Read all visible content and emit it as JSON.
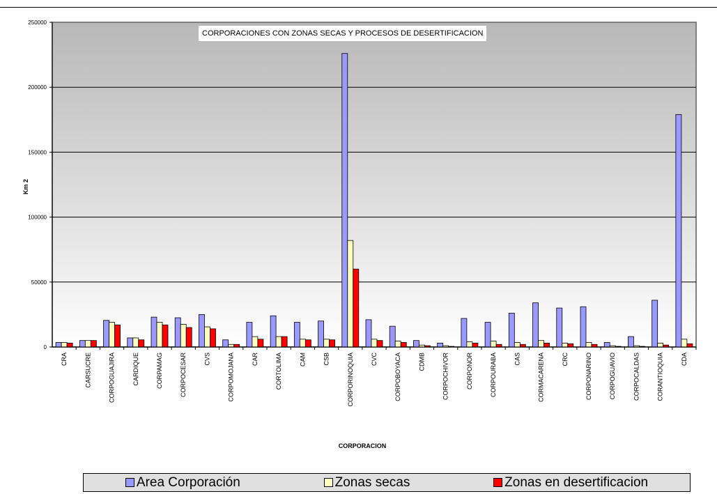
{
  "chart_data": {
    "type": "bar",
    "title": "CORPORACIONES CON ZONAS SECAS Y PROCESOS DE DESERTIFICACION",
    "xlabel": "CORPORACION",
    "ylabel": "Km 2",
    "ylim": [
      0,
      250000
    ],
    "yticks": [
      "0",
      "50000",
      "100000",
      "150000",
      "200000",
      "250000"
    ],
    "grid": true,
    "legend_position": "bottom",
    "categories": [
      "CRA",
      "CARSUCRE",
      "CORPOGUAJIRA",
      "CARDIQUE",
      "CORPAMAG",
      "CORPOCESAR",
      "CVS",
      "CORPOMOJANA",
      "CAR",
      "CORTOLIMA",
      "CAM",
      "CSB",
      "CORPORINOQUIA",
      "CVC",
      "CORPOBOYACA",
      "CDMB",
      "CORPOCHIVOR",
      "CORPONOR",
      "CORPOURABA",
      "CAS",
      "CORMACARENA",
      "CRC",
      "CORPONARINO",
      "CORPOGUAVIO",
      "CORPOCALDAS",
      "CORANTIOQUIA",
      "CDA"
    ],
    "series": [
      {
        "name": "Area Corporación",
        "color": "#9999ff",
        "values": [
          3500,
          5000,
          20500,
          7000,
          23000,
          22500,
          25000,
          5500,
          19000,
          24000,
          19000,
          20000,
          226000,
          21000,
          16000,
          5000,
          3000,
          22000,
          19000,
          26000,
          34000,
          30000,
          31000,
          3500,
          8000,
          36000,
          179000
        ]
      },
      {
        "name": "Zonas secas",
        "color": "#ffffc0",
        "values": [
          3500,
          5000,
          19000,
          7000,
          19000,
          17500,
          15500,
          2000,
          8000,
          8000,
          6000,
          6000,
          82000,
          6000,
          4500,
          1500,
          1000,
          4000,
          4500,
          3500,
          5000,
          3000,
          3500,
          1000,
          1000,
          3000,
          6000
        ]
      },
      {
        "name": "Zonas en desertificacion",
        "color": "#ff0000",
        "values": [
          3000,
          5000,
          17000,
          5500,
          17000,
          15000,
          14000,
          2000,
          6000,
          8000,
          5500,
          5500,
          60000,
          5000,
          3500,
          1000,
          500,
          3000,
          2000,
          2000,
          3000,
          2500,
          2000,
          500,
          500,
          1500,
          2500
        ]
      }
    ]
  },
  "colors": {
    "plot_background_top": "#b8b8b8",
    "plot_background_bottom": "#ffffff",
    "legend_background": "#e0e0e0"
  }
}
